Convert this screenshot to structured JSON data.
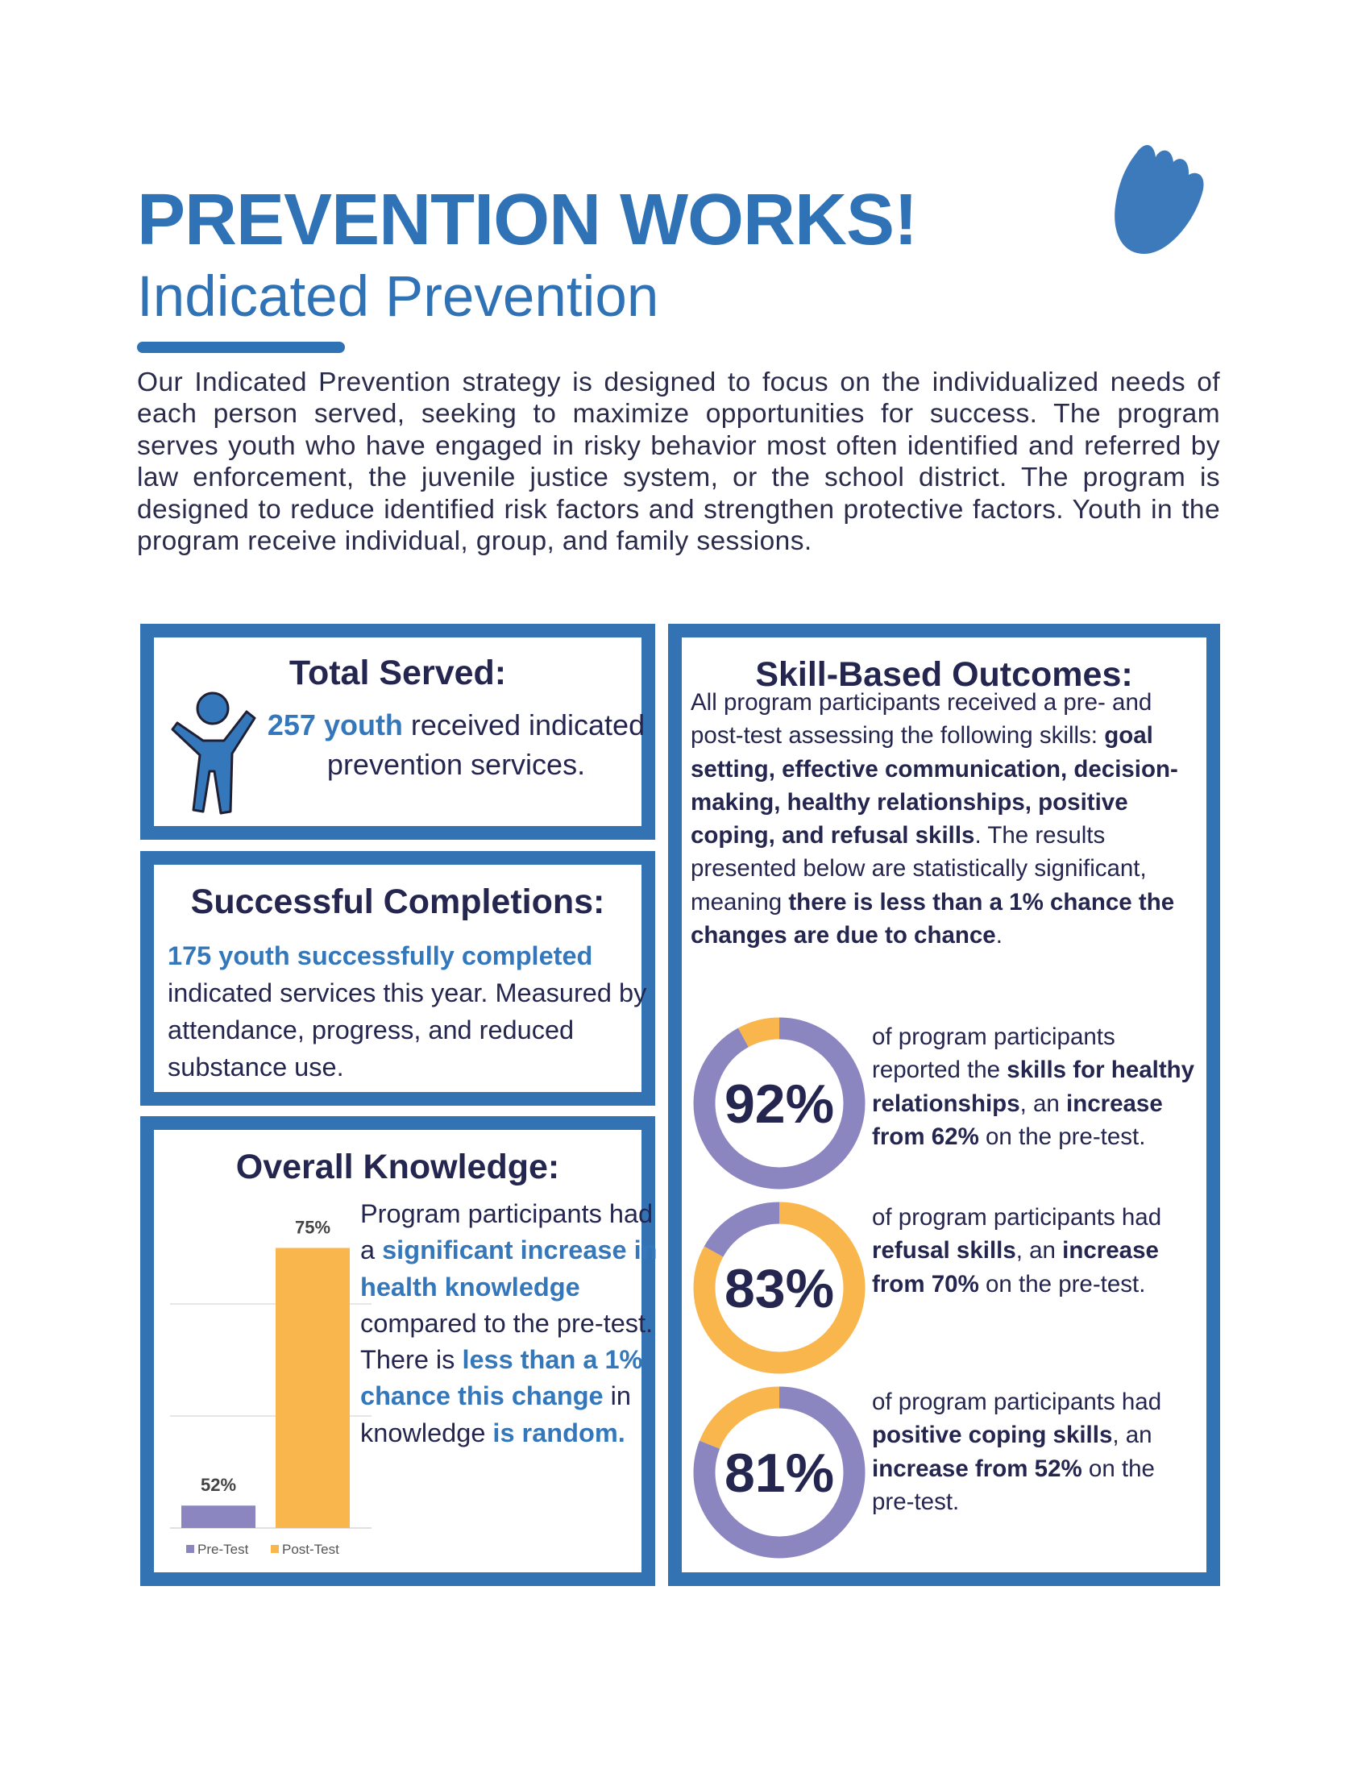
{
  "header": {
    "title": "PREVENTION WORKS!",
    "subtitle": "Indicated Prevention",
    "logo_icon": "hand-icon",
    "intro": "Our Indicated Prevention strategy is designed to focus on the individualized needs of each person served, seeking to maximize opportunities for success. The program serves youth who have engaged in risky behavior most often identified and referred by law enforcement, the juvenile justice system, or the school district. The program is designed to reduce identified risk factors and strengthen protective factors. Youth in the program receive individual, group, and family sessions."
  },
  "colors": {
    "brand_blue": "#3373b3",
    "navy_text": "#25264f",
    "purple": "#8b86c0",
    "orange": "#f8b64c"
  },
  "total_served": {
    "title": "Total Served:",
    "icon": "person-arms-raised-icon",
    "text": [
      {
        "t": "257 youth",
        "s": "blue"
      },
      {
        "t": " received indicated prevention services."
      }
    ]
  },
  "completions": {
    "title": "Successful Completions:",
    "text": [
      {
        "t": "175 youth successfully completed",
        "s": "blue"
      },
      {
        "t": " indicated services this year. Measured by attendance, progress, and reduced substance use."
      }
    ]
  },
  "knowledge": {
    "title": "Overall Knowledge:",
    "text": [
      {
        "t": "Program participants had a "
      },
      {
        "t": "significant increase in health knowledge",
        "s": "blue"
      },
      {
        "t": " compared to the pre-test. There is "
      },
      {
        "t": "less than a 1% chance this change",
        "s": "blue"
      },
      {
        "t": " in knowledge "
      },
      {
        "t": "is random.",
        "s": "blue"
      }
    ]
  },
  "skills": {
    "title": "Skill-Based Outcomes:",
    "text": [
      {
        "t": "All program participants received a pre- and post-test assessing the following skills: "
      },
      {
        "t": "goal setting, effective communication, decision-making, healthy relationships, positive coping, and refusal skills",
        "s": "b"
      },
      {
        "t": ". The results presented below are statistically significant, meaning "
      },
      {
        "t": "there is less than a 1% chance the changes are due to chance",
        "s": "b"
      },
      {
        "t": "."
      }
    ],
    "outcomes": [
      {
        "label": "92%",
        "text": [
          {
            "t": "of program participants reported the "
          },
          {
            "t": "skills for healthy relationships",
            "s": "b"
          },
          {
            "t": ", an "
          },
          {
            "t": "increase from 62%",
            "s": "b"
          },
          {
            "t": " on the pre-test."
          }
        ]
      },
      {
        "label": "83%",
        "text": [
          {
            "t": "of program participants had "
          },
          {
            "t": "refusal skills",
            "s": "b"
          },
          {
            "t": ", an "
          },
          {
            "t": "increase from 70%",
            "s": "b"
          },
          {
            "t": " on the pre-test."
          }
        ]
      },
      {
        "label": "81%",
        "text": [
          {
            "t": "of program participants had "
          },
          {
            "t": "positive coping skills",
            "s": "b"
          },
          {
            "t": ", an "
          },
          {
            "t": "increase from 52%",
            "s": "b"
          },
          {
            "t": " on the pre-test."
          }
        ]
      }
    ]
  },
  "chart_data": [
    {
      "type": "bar",
      "categories": [
        "Pre-Test",
        "Post-Test"
      ],
      "values": [
        52,
        75
      ],
      "labels": [
        "52%",
        "75%"
      ],
      "colors": [
        "#8b86c0",
        "#f8b64c"
      ],
      "ylim": [
        50,
        75
      ],
      "gridlines": [
        60,
        70
      ],
      "grid": true,
      "legend": {
        "position": "bottom",
        "entries": [
          "Pre-Test",
          "Post-Test"
        ]
      }
    },
    {
      "type": "pie",
      "donut": true,
      "values": [
        92,
        8
      ],
      "colors": [
        "#8b86c0",
        "#f8b64c"
      ],
      "label": "92%"
    },
    {
      "type": "pie",
      "donut": true,
      "values": [
        83,
        17
      ],
      "colors": [
        "#f8b64c",
        "#8b86c0"
      ],
      "label": "83%"
    },
    {
      "type": "pie",
      "donut": true,
      "values": [
        81,
        19
      ],
      "colors": [
        "#8b86c0",
        "#f8b64c"
      ],
      "label": "81%"
    }
  ]
}
